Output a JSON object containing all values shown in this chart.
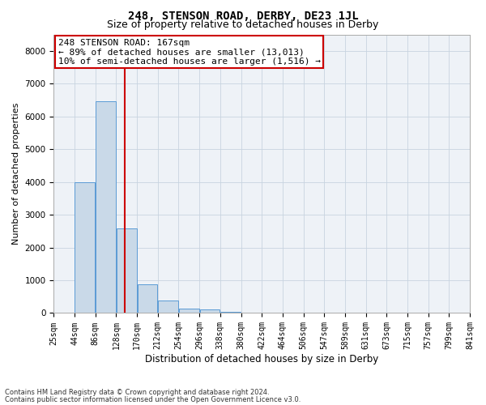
{
  "title": "248, STENSON ROAD, DERBY, DE23 1JL",
  "subtitle": "Size of property relative to detached houses in Derby",
  "xlabel": "Distribution of detached houses by size in Derby",
  "ylabel": "Number of detached properties",
  "annotation_line1": "248 STENSON ROAD: 167sqm",
  "annotation_line2": "← 89% of detached houses are smaller (13,013)",
  "annotation_line3": "10% of semi-detached houses are larger (1,516) →",
  "footer_line1": "Contains HM Land Registry data © Crown copyright and database right 2024.",
  "footer_line2": "Contains public sector information licensed under the Open Government Licence v3.0.",
  "bar_heights": [
    5,
    3980,
    6450,
    2580,
    870,
    370,
    140,
    110,
    45,
    10,
    5,
    5,
    5,
    5,
    0,
    0,
    0,
    0,
    0,
    0
  ],
  "tick_labels": [
    "25sqm",
    "44sqm",
    "86sqm",
    "128sqm",
    "170sqm",
    "212sqm",
    "254sqm",
    "296sqm",
    "338sqm",
    "380sqm",
    "422sqm",
    "464sqm",
    "506sqm",
    "547sqm",
    "589sqm",
    "631sqm",
    "673sqm",
    "715sqm",
    "757sqm",
    "799sqm",
    "841sqm"
  ],
  "n_bars": 20,
  "property_bin": 3.4,
  "ylim": [
    0,
    8500
  ],
  "yticks": [
    0,
    1000,
    2000,
    3000,
    4000,
    5000,
    6000,
    7000,
    8000
  ],
  "bar_color": "#c9d9e8",
  "bar_edge_color": "#5b9bd5",
  "vline_color": "#cc0000",
  "grid_color": "#c8d4e0",
  "bg_color": "#eef2f7",
  "annotation_box_color": "#cc0000",
  "title_fontsize": 10,
  "subtitle_fontsize": 9,
  "xlabel_fontsize": 8.5,
  "ylabel_fontsize": 8,
  "tick_fontsize": 7,
  "annotation_fontsize": 8,
  "footer_fontsize": 6
}
